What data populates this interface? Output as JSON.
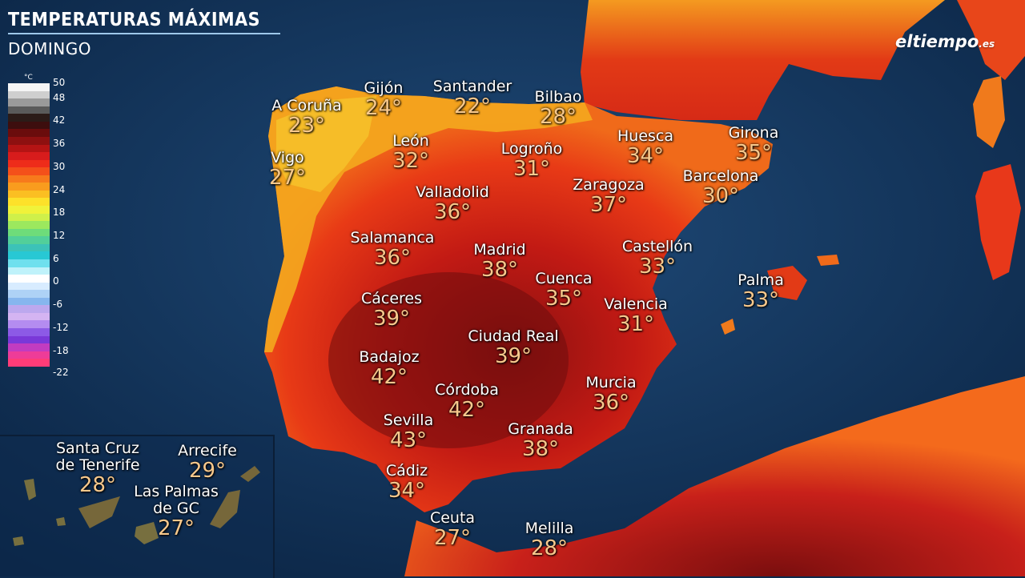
{
  "header": {
    "title": "TEMPERATURAS MÁXIMAS",
    "subtitle": "DOMINGO"
  },
  "brand": {
    "logo_main": "eltiempo",
    "logo_suffix": ".es"
  },
  "legend": {
    "unit": "°C",
    "labels": [
      "50",
      "48",
      "42",
      "36",
      "30",
      "24",
      "18",
      "12",
      "6",
      "0",
      "-6",
      "-12",
      "-18",
      "-22"
    ],
    "colors": [
      "#f5f5f5",
      "#cfcfcf",
      "#9a9a9a",
      "#5a5a5a",
      "#2b1b18",
      "#3d0e0e",
      "#6a0c0c",
      "#8e1010",
      "#b51414",
      "#d81c1c",
      "#ee2c1a",
      "#f4501a",
      "#f77a1c",
      "#f99c1e",
      "#fbbf22",
      "#fde12a",
      "#f0f23a",
      "#cff04a",
      "#9ce85e",
      "#6edc7a",
      "#52cf9a",
      "#3cc2b8",
      "#28c8d4",
      "#6fe0ee",
      "#bff2fa",
      "#ffffff",
      "#d8ecff",
      "#aed2f6",
      "#86b6ee",
      "#bca8ee",
      "#d4b4f2",
      "#b48cf0",
      "#8c5ae6",
      "#7a38d8",
      "#c23cc0",
      "#ee3c98",
      "#ff3c78"
    ]
  },
  "cities": [
    {
      "name": "A Coruña",
      "temp": "23°"
    },
    {
      "name": "Gijón",
      "temp": "24°"
    },
    {
      "name": "Santander",
      "temp": "22°"
    },
    {
      "name": "Bilbao",
      "temp": "28°"
    },
    {
      "name": "Vigo",
      "temp": "27°"
    },
    {
      "name": "León",
      "temp": "32°"
    },
    {
      "name": "Logroño",
      "temp": "31°"
    },
    {
      "name": "Huesca",
      "temp": "34°"
    },
    {
      "name": "Girona",
      "temp": "35°"
    },
    {
      "name": "Barcelona",
      "temp": "30°"
    },
    {
      "name": "Zaragoza",
      "temp": "37°"
    },
    {
      "name": "Valladolid",
      "temp": "36°"
    },
    {
      "name": "Salamanca",
      "temp": "36°"
    },
    {
      "name": "Madrid",
      "temp": "38°"
    },
    {
      "name": "Castellón",
      "temp": "33°"
    },
    {
      "name": "Cuenca",
      "temp": "35°"
    },
    {
      "name": "Palma",
      "temp": "33°"
    },
    {
      "name": "Cáceres",
      "temp": "39°"
    },
    {
      "name": "Valencia",
      "temp": "31°"
    },
    {
      "name": "Ciudad Real",
      "temp": "39°"
    },
    {
      "name": "Badajoz",
      "temp": "42°"
    },
    {
      "name": "Murcia",
      "temp": "36°"
    },
    {
      "name": "Córdoba",
      "temp": "42°"
    },
    {
      "name": "Sevilla",
      "temp": "43°"
    },
    {
      "name": "Granada",
      "temp": "38°"
    },
    {
      "name": "Cádiz",
      "temp": "34°"
    },
    {
      "name": "Ceuta",
      "temp": "27°"
    },
    {
      "name": "Melilla",
      "temp": "28°"
    }
  ],
  "canary": [
    {
      "name_line1": "Santa Cruz",
      "name_line2": "de Tenerife",
      "temp": "28°"
    },
    {
      "name_line1": "Arrecife",
      "name_line2": "",
      "temp": "29°"
    },
    {
      "name_line1": "Las Palmas",
      "name_line2": "de GC",
      "temp": "27°"
    }
  ]
}
